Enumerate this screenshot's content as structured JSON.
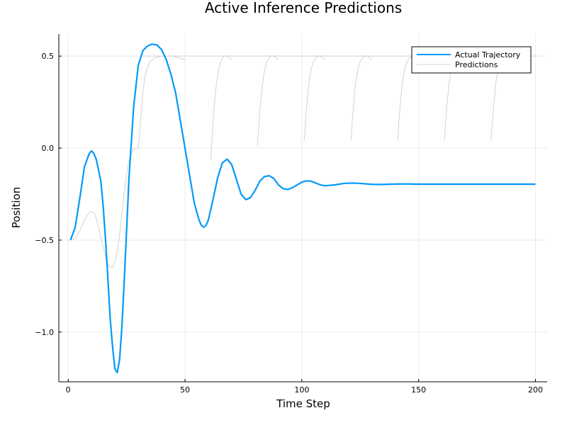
{
  "chart_data": {
    "type": "line",
    "title": "Active Inference Predictions",
    "xlabel": "Time Step",
    "ylabel": "Position",
    "xlim": [
      -4,
      205
    ],
    "ylim": [
      -1.27,
      0.62
    ],
    "x_ticks": [
      0,
      50,
      100,
      150,
      200
    ],
    "x_tick_labels": [
      "0",
      "50",
      "100",
      "150",
      "200"
    ],
    "y_ticks": [
      -1.0,
      -0.5,
      0.0,
      0.5
    ],
    "y_tick_labels": [
      "−1.0",
      "−0.5",
      "0.0",
      "0.5"
    ],
    "grid": true,
    "legend_position": "top-right",
    "colors": {
      "actual": "#009af9",
      "predictions": "#d3d3d3"
    },
    "series": [
      {
        "name": "Actual Trajectory",
        "x": [
          1,
          3,
          5,
          7,
          9,
          10,
          11,
          12,
          14,
          15,
          16,
          17,
          18,
          19,
          20,
          21,
          22,
          23,
          24,
          25,
          26,
          28,
          30,
          32,
          34,
          36,
          38,
          40,
          42,
          44,
          46,
          48,
          50,
          52,
          54,
          56,
          57,
          58,
          59,
          60,
          62,
          64,
          66,
          68,
          70,
          72,
          74,
          76,
          78,
          80,
          82,
          84,
          86,
          88,
          90,
          92,
          94,
          96,
          98,
          100,
          102,
          104,
          106,
          108,
          110,
          114,
          118,
          122,
          126,
          130,
          134,
          138,
          142,
          146,
          150,
          160,
          170,
          180,
          190,
          200
        ],
        "y": [
          -0.5,
          -0.43,
          -0.27,
          -0.1,
          -0.03,
          -0.015,
          -0.03,
          -0.06,
          -0.18,
          -0.32,
          -0.5,
          -0.71,
          -0.93,
          -1.08,
          -1.2,
          -1.22,
          -1.15,
          -0.97,
          -0.72,
          -0.45,
          -0.17,
          0.22,
          0.45,
          0.53,
          0.555,
          0.565,
          0.56,
          0.535,
          0.48,
          0.4,
          0.3,
          0.15,
          0.0,
          -0.15,
          -0.3,
          -0.39,
          -0.42,
          -0.43,
          -0.42,
          -0.39,
          -0.28,
          -0.16,
          -0.08,
          -0.06,
          -0.09,
          -0.17,
          -0.25,
          -0.28,
          -0.27,
          -0.23,
          -0.18,
          -0.155,
          -0.15,
          -0.165,
          -0.2,
          -0.22,
          -0.225,
          -0.215,
          -0.2,
          -0.185,
          -0.178,
          -0.18,
          -0.19,
          -0.2,
          -0.205,
          -0.2,
          -0.192,
          -0.19,
          -0.193,
          -0.197,
          -0.198,
          -0.196,
          -0.195,
          -0.195,
          -0.196,
          -0.196,
          -0.196,
          -0.196,
          -0.196,
          -0.196
        ]
      },
      {
        "name": "Predictions",
        "segments": [
          {
            "x": [
              1,
              3,
              5,
              7,
              9,
              10,
              11,
              12,
              13,
              14,
              15,
              16,
              17,
              18,
              19,
              20,
              21,
              22,
              23,
              24,
              25,
              26,
              27,
              28,
              29,
              30,
              31
            ],
            "y": [
              -0.5,
              -0.49,
              -0.45,
              -0.39,
              -0.35,
              -0.345,
              -0.35,
              -0.38,
              -0.43,
              -0.49,
              -0.54,
              -0.59,
              -0.63,
              -0.645,
              -0.65,
              -0.62,
              -0.56,
              -0.47,
              -0.36,
              -0.24,
              -0.14,
              -0.07,
              -0.03,
              -0.01,
              0.0,
              0.0,
              0.0
            ]
          },
          {
            "x": [
              30,
              31,
              32,
              33,
              35,
              37,
              40,
              45,
              50
            ],
            "y": [
              0.0,
              0.15,
              0.3,
              0.4,
              0.47,
              0.49,
              0.5,
              0.5,
              0.48
            ]
          },
          {
            "x": [
              32,
              35,
              40,
              45,
              48,
              50,
              55,
              60,
              65,
              70,
              75,
              80,
              85,
              90,
              95,
              100,
              105,
              110,
              115,
              120,
              125,
              130,
              135,
              140,
              145,
              150,
              155,
              160,
              165,
              170,
              175,
              180,
              185,
              190,
              195,
              200
            ],
            "y": [
              0.5,
              0.5,
              0.5,
              0.5,
              0.5,
              0.5,
              0.5,
              0.5,
              0.5,
              0.5,
              0.5,
              0.5,
              0.5,
              0.5,
              0.5,
              0.5,
              0.5,
              0.5,
              0.5,
              0.5,
              0.5,
              0.5,
              0.5,
              0.5,
              0.5,
              0.5,
              0.5,
              0.5,
              0.5,
              0.5,
              0.5,
              0.5,
              0.5,
              0.5,
              0.5,
              0.5
            ]
          },
          {
            "x": [
              61,
              62,
              63,
              64,
              65,
              66,
              67,
              68,
              69,
              70
            ],
            "y": [
              -0.07,
              0.15,
              0.3,
              0.4,
              0.46,
              0.49,
              0.5,
              0.5,
              0.49,
              0.48
            ]
          },
          {
            "x": [
              81,
              82,
              83,
              84,
              85,
              86,
              87,
              88,
              89,
              90
            ],
            "y": [
              0.01,
              0.2,
              0.33,
              0.42,
              0.47,
              0.49,
              0.5,
              0.5,
              0.49,
              0.48
            ]
          },
          {
            "x": [
              101,
              102,
              103,
              104,
              105,
              106,
              107,
              108,
              109,
              110
            ],
            "y": [
              0.04,
              0.22,
              0.35,
              0.43,
              0.47,
              0.49,
              0.5,
              0.5,
              0.49,
              0.48
            ]
          },
          {
            "x": [
              121,
              122,
              123,
              124,
              125,
              126,
              127,
              128,
              129,
              130
            ],
            "y": [
              0.04,
              0.22,
              0.35,
              0.43,
              0.47,
              0.49,
              0.5,
              0.5,
              0.49,
              0.48
            ]
          },
          {
            "x": [
              141,
              142,
              143,
              144,
              145,
              146,
              147,
              148,
              149,
              150
            ],
            "y": [
              0.04,
              0.22,
              0.35,
              0.43,
              0.47,
              0.49,
              0.5,
              0.5,
              0.49,
              0.48
            ]
          },
          {
            "x": [
              161,
              162,
              163,
              164,
              165,
              166,
              167,
              168,
              169,
              170
            ],
            "y": [
              0.04,
              0.22,
              0.35,
              0.43,
              0.47,
              0.49,
              0.5,
              0.5,
              0.49,
              0.48
            ]
          },
          {
            "x": [
              181,
              182,
              183,
              184,
              185,
              186,
              187,
              188,
              189,
              190
            ],
            "y": [
              0.04,
              0.22,
              0.35,
              0.43,
              0.47,
              0.49,
              0.5,
              0.5,
              0.49,
              0.48
            ]
          }
        ]
      }
    ]
  }
}
